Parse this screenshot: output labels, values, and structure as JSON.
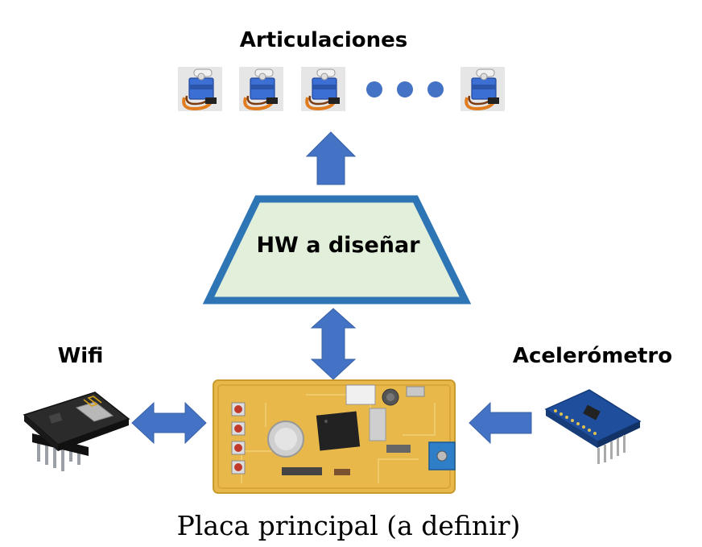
{
  "labels": {
    "joints": "Articulaciones",
    "hw": "HW a diseñar",
    "wifi": "Wifi",
    "accelerometer": "Acelerómetro",
    "main_board": "Placa principal (a definir)"
  },
  "servos": {
    "shown": 4,
    "ellipsis_dots": 3
  },
  "colors": {
    "arrow": "#4472c4",
    "trapezoid_fill": "#e2efda",
    "trapezoid_stroke": "#2e75b6",
    "board": "#e8b84a",
    "accel_board": "#1f4e9c",
    "wifi_board": "#2b2b2b"
  },
  "icons": [
    "servo-icon",
    "wifi-module-icon",
    "accelerometer-module-icon",
    "main-board-icon",
    "up-arrow-icon",
    "double-arrow-icon",
    "left-arrow-icon"
  ]
}
